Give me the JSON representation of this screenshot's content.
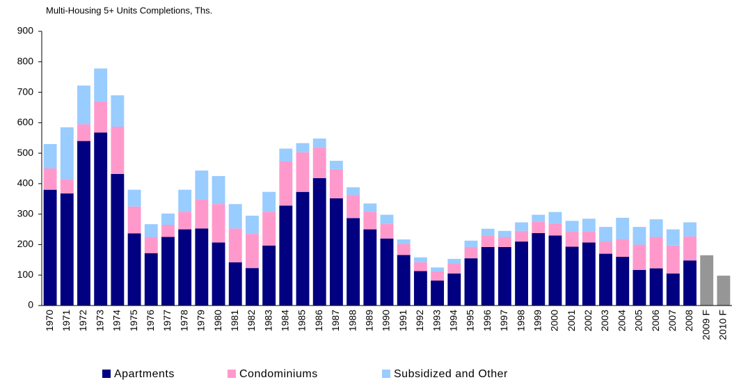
{
  "chart_data": {
    "type": "stacked_bar",
    "title": "Multi-Housing 5+ Units Completions, Ths.",
    "categories": [
      "1970",
      "1971",
      "1972",
      "1973",
      "1974",
      "1975",
      "1976",
      "1977",
      "1978",
      "1979",
      "1980",
      "1981",
      "1982",
      "1983",
      "1984",
      "1985",
      "1986",
      "1987",
      "1988",
      "1989",
      "1990",
      "1991",
      "1992",
      "1993",
      "1994",
      "1995",
      "1996",
      "1997",
      "1998",
      "1999",
      "2000",
      "2001",
      "2002",
      "2003",
      "2004",
      "2005",
      "2006",
      "2007",
      "2008",
      "2009 F",
      "2010 F"
    ],
    "series": [
      {
        "name": "Apartments",
        "color": "#000080",
        "values": [
          380,
          368,
          540,
          568,
          432,
          237,
          172,
          225,
          250,
          253,
          207,
          142,
          123,
          197,
          328,
          373,
          418,
          352,
          287,
          250,
          220,
          166,
          113,
          82,
          105,
          155,
          192,
          192,
          210,
          238,
          230,
          193,
          207,
          170,
          160,
          117,
          122,
          105,
          148,
          null,
          null
        ]
      },
      {
        "name": "Condominiums",
        "color": "#ff99cc",
        "values": [
          70,
          47,
          55,
          102,
          155,
          88,
          53,
          40,
          58,
          95,
          126,
          111,
          112,
          111,
          145,
          130,
          102,
          96,
          76,
          58,
          48,
          36,
          29,
          30,
          32,
          37,
          38,
          33,
          35,
          37,
          40,
          49,
          36,
          40,
          58,
          83,
          103,
          92,
          79,
          null,
          null
        ]
      },
      {
        "name": "Subsidized and Other",
        "color": "#99ccff",
        "values": [
          80,
          170,
          127,
          108,
          103,
          55,
          42,
          37,
          72,
          95,
          92,
          80,
          60,
          65,
          42,
          30,
          28,
          27,
          25,
          27,
          30,
          15,
          16,
          13,
          16,
          21,
          22,
          20,
          28,
          23,
          37,
          36,
          42,
          48,
          70,
          58,
          58,
          53,
          46,
          null,
          null
        ]
      },
      {
        "color": "#969696",
        "values": [
          null,
          null,
          null,
          null,
          null,
          null,
          null,
          null,
          null,
          null,
          null,
          null,
          null,
          null,
          null,
          null,
          null,
          null,
          null,
          null,
          null,
          null,
          null,
          null,
          null,
          null,
          null,
          null,
          null,
          null,
          null,
          null,
          null,
          null,
          null,
          null,
          null,
          null,
          null,
          165,
          98
        ]
      }
    ],
    "ylim": [
      0,
      900
    ],
    "yticks": [
      0,
      100,
      200,
      300,
      400,
      500,
      600,
      700,
      800,
      900
    ],
    "grid": false
  }
}
